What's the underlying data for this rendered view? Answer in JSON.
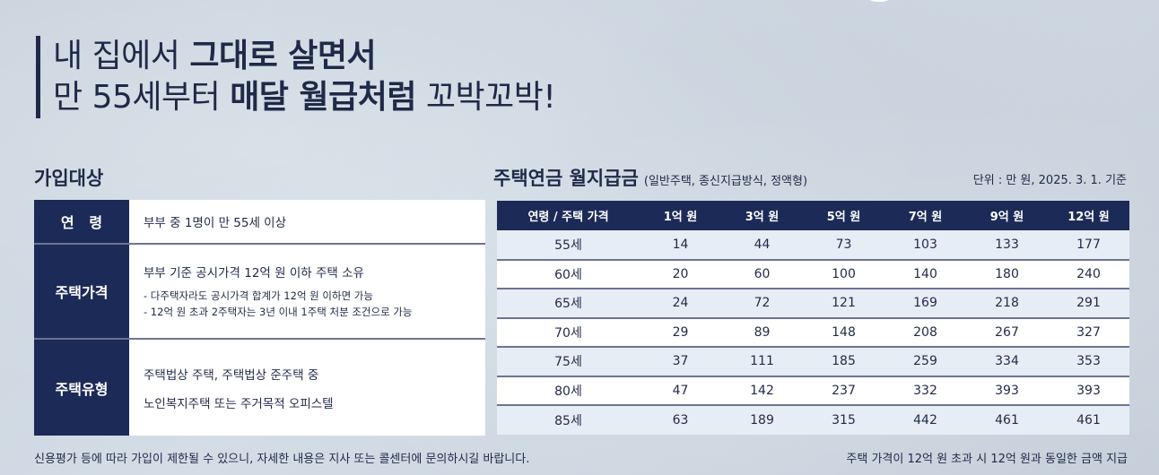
{
  "headline": {
    "line1_a": "내 집에서 ",
    "line1_b": "그대로 살면서",
    "line2_a": "만 55세부터 ",
    "line2_b": "매달 월급처럼",
    "line2_c": " 꼬박꼬박!"
  },
  "eligibility": {
    "title": "가입대상",
    "rows": [
      {
        "header": "연   령",
        "main": "부부 중 1명이 만 55세 이상"
      },
      {
        "header": "주택가격",
        "main": "부부 기준 공시가격 12억 원 이하 주택 소유",
        "notes": [
          "- 다주택자라도 공시가격 합계가 12억 원 이하면 가능",
          "- 12억 원 초과 2주택자는 3년 이내 1주택 처분 조건으로 가능"
        ]
      },
      {
        "header": "주택유형",
        "lines": [
          "주택법상 주택, 주택법상 준주택 중",
          "노인복지주택 또는 주거목적 오피스텔"
        ]
      }
    ]
  },
  "pension": {
    "title": "주택연금 월지급금",
    "subtitle": "(일반주택, 종신지급방식, 정액형)",
    "unit_note": "단위 : 만 원, 2025. 3. 1. 기준",
    "columns": [
      "연령 / 주택 가격",
      "1억 원",
      "3억 원",
      "5억 원",
      "7억 원",
      "9억 원",
      "12억 원"
    ],
    "rows": [
      [
        "55세",
        "14",
        "44",
        "73",
        "103",
        "133",
        "177"
      ],
      [
        "60세",
        "20",
        "60",
        "100",
        "140",
        "180",
        "240"
      ],
      [
        "65세",
        "24",
        "72",
        "121",
        "169",
        "218",
        "291"
      ],
      [
        "70세",
        "29",
        "89",
        "148",
        "208",
        "267",
        "327"
      ],
      [
        "75세",
        "37",
        "111",
        "185",
        "259",
        "334",
        "353"
      ],
      [
        "80세",
        "47",
        "142",
        "237",
        "332",
        "393",
        "393"
      ],
      [
        "85세",
        "63",
        "189",
        "315",
        "442",
        "461",
        "461"
      ]
    ]
  },
  "footer": {
    "left": "신용평가 등에 따라 가입이 제한될 수 있으니, 자세한 내용은 지사 또는 콜센터에 문의하시길 바랍니다.",
    "right": "주택 가격이 12억 원 초과 시 12억 원과 동일한 금액 지급"
  }
}
